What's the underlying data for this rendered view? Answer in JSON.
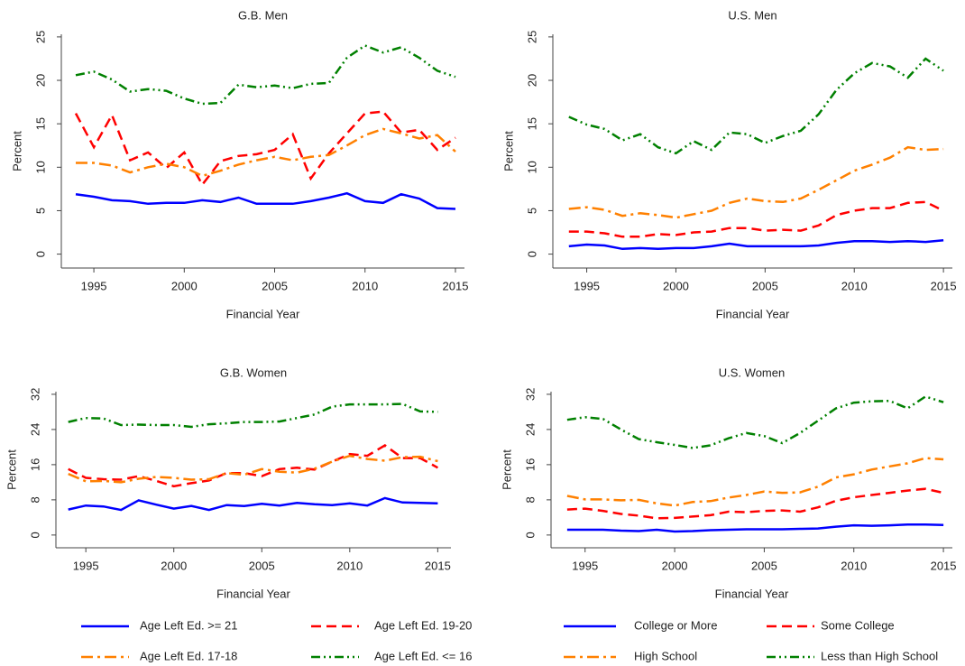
{
  "chart_data": [
    {
      "type": "line",
      "title": "G.B. Men",
      "xlabel": "Financial Year",
      "ylabel": "Percent",
      "x": [
        1994,
        1995,
        1996,
        1997,
        1998,
        1999,
        2000,
        2001,
        2002,
        2003,
        2004,
        2005,
        2006,
        2007,
        2008,
        2009,
        2010,
        2011,
        2012,
        2013,
        2014,
        2015
      ],
      "xlim": [
        1993.2,
        2015.5
      ],
      "xticks": [
        1995,
        2000,
        2005,
        2010,
        2015
      ],
      "ylim": [
        -1.6,
        25.3
      ],
      "yticks": [
        0,
        5,
        10,
        15,
        20,
        25
      ],
      "series": [
        {
          "color": "#0000ff",
          "style": "solid",
          "values": [
            6.9,
            6.6,
            6.2,
            6.1,
            5.8,
            5.9,
            5.9,
            6.2,
            6.0,
            6.5,
            5.8,
            5.8,
            5.8,
            6.1,
            6.5,
            7.0,
            6.1,
            5.9,
            6.9,
            6.4,
            5.3,
            5.2
          ]
        },
        {
          "color": "#ff0000",
          "style": "dash",
          "values": [
            16.2,
            12.3,
            16.0,
            10.8,
            11.7,
            9.9,
            11.7,
            8.0,
            10.7,
            11.3,
            11.5,
            12.0,
            13.8,
            8.7,
            11.6,
            13.9,
            16.2,
            16.4,
            14.0,
            14.3,
            12.0,
            13.4
          ]
        },
        {
          "color": "#ff8000",
          "style": "dashdot",
          "values": [
            10.5,
            10.5,
            10.2,
            9.4,
            10.0,
            10.4,
            10.0,
            9.0,
            9.6,
            10.3,
            10.8,
            11.2,
            10.8,
            11.2,
            11.4,
            12.5,
            13.7,
            14.4,
            13.9,
            13.3,
            13.7,
            11.8
          ]
        },
        {
          "color": "#008000",
          "style": "dashdotdot",
          "values": [
            20.6,
            21.0,
            20.1,
            18.7,
            19.0,
            18.8,
            17.9,
            17.3,
            17.4,
            19.5,
            19.2,
            19.4,
            19.1,
            19.6,
            19.7,
            22.6,
            24.0,
            23.2,
            23.8,
            22.6,
            21.1,
            20.4
          ]
        }
      ]
    },
    {
      "type": "line",
      "title": "U.S. Men",
      "xlabel": "Financial Year",
      "ylabel": "Percent",
      "x": [
        1994,
        1995,
        1996,
        1997,
        1998,
        1999,
        2000,
        2001,
        2002,
        2003,
        2004,
        2005,
        2006,
        2007,
        2008,
        2009,
        2010,
        2011,
        2012,
        2013,
        2014,
        2015
      ],
      "xlim": [
        1993.1,
        2015.5
      ],
      "xticks": [
        1995,
        2000,
        2005,
        2010,
        2015
      ],
      "ylim": [
        -1.6,
        25.3
      ],
      "yticks": [
        0,
        5,
        10,
        15,
        20,
        25
      ],
      "series": [
        {
          "color": "#0000ff",
          "style": "solid",
          "values": [
            0.9,
            1.1,
            1.0,
            0.6,
            0.7,
            0.6,
            0.7,
            0.7,
            0.9,
            1.2,
            0.9,
            0.9,
            0.9,
            0.9,
            1.0,
            1.3,
            1.5,
            1.5,
            1.4,
            1.5,
            1.4,
            1.6
          ]
        },
        {
          "color": "#ff0000",
          "style": "dash",
          "values": [
            2.6,
            2.6,
            2.4,
            2.0,
            2.0,
            2.3,
            2.2,
            2.5,
            2.6,
            3.0,
            3.0,
            2.7,
            2.8,
            2.7,
            3.3,
            4.5,
            5.0,
            5.3,
            5.3,
            5.9,
            6.0,
            5.0
          ]
        },
        {
          "color": "#ff8000",
          "style": "dashdot",
          "values": [
            5.2,
            5.4,
            5.1,
            4.4,
            4.7,
            4.5,
            4.2,
            4.6,
            5.0,
            5.9,
            6.4,
            6.1,
            6.0,
            6.4,
            7.4,
            8.5,
            9.6,
            10.3,
            11.1,
            12.3,
            12.0,
            12.1
          ]
        },
        {
          "color": "#008000",
          "style": "dashdotdot",
          "values": [
            15.8,
            14.9,
            14.4,
            13.1,
            13.8,
            12.3,
            11.6,
            13.0,
            12.0,
            14.0,
            13.8,
            12.8,
            13.6,
            14.2,
            16.1,
            18.9,
            20.8,
            22.0,
            21.6,
            20.3,
            22.5,
            21.1
          ]
        }
      ]
    },
    {
      "type": "line",
      "title": "G.B. Women",
      "xlabel": "Financial Year",
      "ylabel": "Percent",
      "x": [
        1994,
        1995,
        1996,
        1997,
        1998,
        1999,
        2000,
        2001,
        2002,
        2003,
        2004,
        2005,
        2006,
        2007,
        2008,
        2009,
        2010,
        2011,
        2012,
        2013,
        2014,
        2015
      ],
      "xlim": [
        1993.3,
        2015.75
      ],
      "xticks": [
        1995,
        2000,
        2005,
        2010,
        2015
      ],
      "ylim": [
        -2.9,
        32.6
      ],
      "yticks": [
        0,
        8,
        16,
        24,
        32
      ],
      "series": [
        {
          "name": "Age Left Ed. >= 21",
          "color": "#0000ff",
          "style": "solid",
          "values": [
            5.8,
            6.7,
            6.5,
            5.7,
            7.9,
            6.9,
            6.0,
            6.6,
            5.7,
            6.8,
            6.6,
            7.1,
            6.7,
            7.3,
            7.0,
            6.8,
            7.2,
            6.7,
            8.4,
            7.4,
            7.3,
            7.2
          ]
        },
        {
          "name": "Age Left Ed. 19-20",
          "color": "#ff0000",
          "style": "dash",
          "values": [
            15.0,
            13.0,
            12.7,
            12.6,
            13.4,
            12.3,
            11.1,
            11.8,
            12.4,
            14.1,
            14.1,
            13.4,
            15.0,
            15.3,
            14.9,
            16.7,
            18.4,
            18.0,
            20.4,
            17.5,
            17.5,
            15.3
          ]
        },
        {
          "name": "Age Left Ed. 17-18",
          "color": "#ff8000",
          "style": "dashdot",
          "values": [
            13.9,
            12.2,
            12.3,
            12.0,
            12.8,
            13.2,
            13.0,
            12.6,
            12.7,
            14.1,
            13.7,
            15.0,
            14.4,
            14.2,
            15.1,
            16.7,
            18.0,
            17.3,
            16.9,
            17.7,
            17.8,
            16.8
          ]
        },
        {
          "name": "Age Left Ed. <= 16",
          "color": "#008000",
          "style": "dashdotdot",
          "values": [
            25.7,
            26.6,
            26.5,
            25.0,
            25.1,
            25.0,
            25.0,
            24.6,
            25.2,
            25.4,
            25.7,
            25.7,
            25.8,
            26.6,
            27.4,
            29.2,
            29.7,
            29.7,
            29.7,
            29.8,
            28.1,
            28.0
          ]
        }
      ]
    },
    {
      "type": "line",
      "title": "U.S. Women",
      "xlabel": "Financial Year",
      "ylabel": "Percent",
      "x": [
        1994,
        1995,
        1996,
        1997,
        1998,
        1999,
        2000,
        2001,
        2002,
        2003,
        2004,
        2005,
        2006,
        2007,
        2008,
        2009,
        2010,
        2011,
        2012,
        2013,
        2014,
        2015
      ],
      "xlim": [
        1993.1,
        2015.5
      ],
      "xticks": [
        1995,
        2000,
        2005,
        2010,
        2015
      ],
      "ylim": [
        -2.9,
        32.6
      ],
      "yticks": [
        0,
        8,
        16,
        24,
        32
      ],
      "series": [
        {
          "name": "College or More",
          "color": "#0000ff",
          "style": "solid",
          "values": [
            1.2,
            1.2,
            1.2,
            1.0,
            0.9,
            1.2,
            0.8,
            0.9,
            1.1,
            1.2,
            1.3,
            1.3,
            1.3,
            1.4,
            1.5,
            1.9,
            2.2,
            2.1,
            2.2,
            2.4,
            2.4,
            2.3
          ]
        },
        {
          "name": "Some College",
          "color": "#ff0000",
          "style": "dash",
          "values": [
            5.8,
            6.0,
            5.5,
            4.8,
            4.4,
            3.8,
            3.9,
            4.2,
            4.5,
            5.3,
            5.2,
            5.5,
            5.6,
            5.3,
            6.3,
            7.8,
            8.6,
            9.1,
            9.6,
            10.1,
            10.5,
            9.6
          ]
        },
        {
          "name": "High School",
          "color": "#ff8000",
          "style": "dashdot",
          "values": [
            8.9,
            8.1,
            8.1,
            7.9,
            8.0,
            7.2,
            6.7,
            7.5,
            7.7,
            8.5,
            9.1,
            9.9,
            9.6,
            9.7,
            11.0,
            13.1,
            13.8,
            14.9,
            15.6,
            16.3,
            17.5,
            17.2
          ]
        },
        {
          "name": "Less than High School",
          "color": "#008000",
          "style": "dashdotdot",
          "values": [
            26.2,
            26.8,
            26.4,
            24.0,
            21.8,
            21.1,
            20.5,
            19.8,
            20.4,
            22.0,
            23.2,
            22.5,
            20.9,
            23.2,
            26.0,
            28.8,
            30.1,
            30.4,
            30.5,
            28.8,
            31.5,
            30.2
          ]
        }
      ]
    }
  ]
}
